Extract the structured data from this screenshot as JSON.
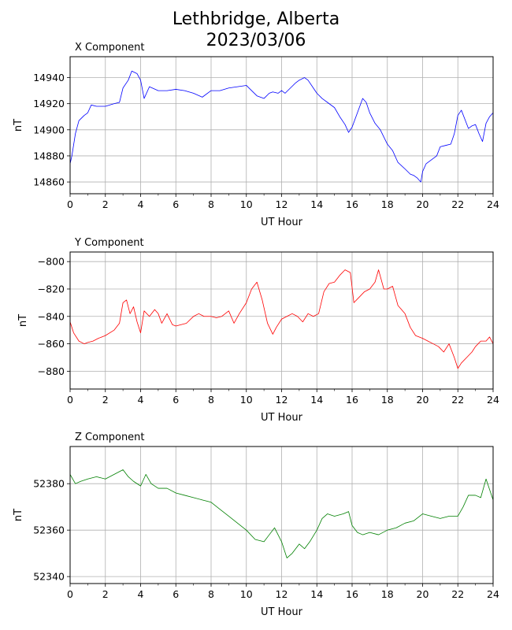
{
  "figure": {
    "title_line1": "Lethbridge, Alberta",
    "title_line2": "2023/03/06"
  },
  "chart_data": [
    {
      "type": "line",
      "title": "X Component",
      "xlabel": "UT Hour",
      "ylabel": "nT",
      "color": "#0000ff",
      "xlim": [
        0,
        24
      ],
      "ylim": [
        14851,
        14956
      ],
      "xticks": [
        0,
        2,
        4,
        6,
        8,
        10,
        12,
        14,
        16,
        18,
        20,
        22,
        24
      ],
      "yticks": [
        14860,
        14880,
        14900,
        14920,
        14940
      ],
      "grid": true,
      "series": [
        {
          "x": [
            0,
            0.1,
            0.3,
            0.5,
            0.8,
            1.0,
            1.2,
            1.5,
            2.0,
            2.5,
            2.8,
            3.0,
            3.3,
            3.5,
            3.8,
            4.0,
            4.2,
            4.5,
            5.0,
            5.5,
            6.0,
            6.5,
            7.0,
            7.5,
            8.0,
            8.5,
            9.0,
            9.5,
            10.0,
            10.3,
            10.6,
            11.0,
            11.3,
            11.5,
            11.8,
            12.0,
            12.2,
            12.5,
            12.8,
            13.0,
            13.3,
            13.5,
            13.8,
            14.0,
            14.3,
            14.6,
            15.0,
            15.3,
            15.6,
            15.8,
            16.0,
            16.3,
            16.6,
            16.8,
            17.0,
            17.3,
            17.6,
            18.0,
            18.3,
            18.6,
            19.0,
            19.3,
            19.5,
            19.7,
            19.9,
            20.0,
            20.2,
            20.5,
            20.8,
            21.0,
            21.3,
            21.6,
            21.8,
            22.0,
            22.2,
            22.4,
            22.6,
            22.8,
            23.0,
            23.2,
            23.4,
            23.6,
            23.8,
            24.0
          ],
          "y": [
            14874,
            14880,
            14897,
            14907,
            14911,
            14913,
            14919,
            14918,
            14918,
            14920,
            14921,
            14932,
            14938,
            14945,
            14943,
            14938,
            14924,
            14933,
            14930,
            14930,
            14931,
            14930,
            14928,
            14925,
            14930,
            14930,
            14932,
            14933,
            14934,
            14930,
            14926,
            14924,
            14928,
            14929,
            14928,
            14930,
            14928,
            14932,
            14936,
            14938,
            14940,
            14938,
            14932,
            14928,
            14924,
            14921,
            14917,
            14910,
            14904,
            14898,
            14902,
            14913,
            14924,
            14921,
            14913,
            14905,
            14900,
            14889,
            14884,
            14875,
            14870,
            14866,
            14865,
            14863,
            14860,
            14868,
            14874,
            14877,
            14880,
            14887,
            14888,
            14889,
            14897,
            14911,
            14915,
            14908,
            14901,
            14903,
            14904,
            14897,
            14891,
            14905,
            14910,
            14913
          ]
        }
      ]
    },
    {
      "type": "line",
      "title": "Y Component",
      "xlabel": "UT Hour",
      "ylabel": "nT",
      "color": "#ff0000",
      "xlim": [
        0,
        24
      ],
      "ylim": [
        -893,
        -793
      ],
      "xticks": [
        0,
        2,
        4,
        6,
        8,
        10,
        12,
        14,
        16,
        18,
        20,
        22,
        24
      ],
      "yticks": [
        -880,
        -860,
        -840,
        -820,
        -800
      ],
      "grid": true,
      "series": [
        {
          "x": [
            0,
            0.2,
            0.5,
            0.8,
            1.0,
            1.3,
            1.6,
            2.0,
            2.5,
            2.8,
            3.0,
            3.2,
            3.4,
            3.6,
            3.8,
            4.0,
            4.2,
            4.5,
            4.8,
            5.0,
            5.2,
            5.5,
            5.8,
            6.0,
            6.3,
            6.6,
            7.0,
            7.3,
            7.6,
            8.0,
            8.3,
            8.6,
            9.0,
            9.3,
            9.6,
            10.0,
            10.3,
            10.6,
            10.9,
            11.2,
            11.5,
            11.7,
            12.0,
            12.3,
            12.6,
            12.9,
            13.2,
            13.5,
            13.8,
            14.1,
            14.4,
            14.7,
            15.0,
            15.3,
            15.6,
            15.9,
            16.1,
            16.4,
            16.7,
            17.0,
            17.3,
            17.5,
            17.8,
            18.0,
            18.3,
            18.6,
            19.0,
            19.3,
            19.6,
            20.0,
            20.3,
            20.6,
            20.9,
            21.2,
            21.5,
            21.8,
            22.0,
            22.2,
            22.5,
            22.8,
            23.0,
            23.3,
            23.6,
            23.8,
            24.0
          ],
          "y": [
            -844,
            -852,
            -858,
            -860,
            -859,
            -858,
            -856,
            -854,
            -850,
            -845,
            -830,
            -828,
            -838,
            -833,
            -844,
            -852,
            -836,
            -840,
            -835,
            -838,
            -845,
            -838,
            -846,
            -847,
            -846,
            -845,
            -840,
            -838,
            -840,
            -840,
            -841,
            -840,
            -836,
            -845,
            -838,
            -830,
            -820,
            -815,
            -828,
            -845,
            -853,
            -848,
            -842,
            -840,
            -838,
            -840,
            -844,
            -838,
            -840,
            -838,
            -822,
            -816,
            -815,
            -810,
            -806,
            -808,
            -830,
            -826,
            -822,
            -820,
            -815,
            -806,
            -820,
            -820,
            -818,
            -832,
            -838,
            -848,
            -854,
            -856,
            -858,
            -860,
            -862,
            -866,
            -860,
            -870,
            -878,
            -874,
            -870,
            -866,
            -862,
            -858,
            -858,
            -855,
            -860
          ]
        }
      ]
    },
    {
      "type": "line",
      "title": "Z Component",
      "xlabel": "UT Hour",
      "ylabel": "nT",
      "color": "#008000",
      "xlim": [
        0,
        24
      ],
      "ylim": [
        52337,
        52396
      ],
      "xticks": [
        0,
        2,
        4,
        6,
        8,
        10,
        12,
        14,
        16,
        18,
        20,
        22,
        24
      ],
      "yticks": [
        52340,
        52360,
        52380
      ],
      "grid": true,
      "series": [
        {
          "x": [
            0,
            0.3,
            0.6,
            1.0,
            1.5,
            2.0,
            2.5,
            3.0,
            3.3,
            3.6,
            4.0,
            4.3,
            4.6,
            5.0,
            5.5,
            6.0,
            6.5,
            7.0,
            7.5,
            8.0,
            8.5,
            9.0,
            9.5,
            10.0,
            10.5,
            11.0,
            11.3,
            11.6,
            12.0,
            12.3,
            12.6,
            13.0,
            13.3,
            13.6,
            14.0,
            14.3,
            14.6,
            15.0,
            15.5,
            15.8,
            16.0,
            16.3,
            16.6,
            17.0,
            17.5,
            18.0,
            18.5,
            19.0,
            19.5,
            20.0,
            20.5,
            21.0,
            21.5,
            22.0,
            22.3,
            22.6,
            23.0,
            23.3,
            23.6,
            24.0
          ],
          "y": [
            52384,
            52380,
            52381,
            52382,
            52383,
            52382,
            52384,
            52386,
            52383,
            52381,
            52379,
            52384,
            52380,
            52378,
            52378,
            52376,
            52375,
            52374,
            52373,
            52372,
            52369,
            52366,
            52363,
            52360,
            52356,
            52355,
            52358,
            52361,
            52355,
            52348,
            52350,
            52354,
            52352,
            52355,
            52360,
            52365,
            52367,
            52366,
            52367,
            52368,
            52362,
            52359,
            52358,
            52359,
            52358,
            52360,
            52361,
            52363,
            52364,
            52367,
            52366,
            52365,
            52366,
            52366,
            52370,
            52375,
            52375,
            52374,
            52382,
            52373
          ]
        }
      ]
    }
  ]
}
